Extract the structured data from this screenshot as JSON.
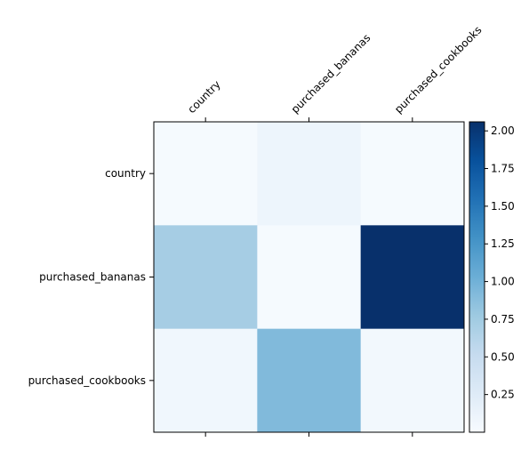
{
  "chart_data": {
    "type": "heatmap",
    "title": "",
    "xlabel": "",
    "ylabel": "",
    "x_categories": [
      "country",
      "purchased_bananas",
      "purchased_cookbooks"
    ],
    "y_categories": [
      "country",
      "purchased_bananas",
      "purchased_cookbooks"
    ],
    "values": [
      [
        0.02,
        0.1,
        0.02
      ],
      [
        0.72,
        0.02,
        2.06
      ],
      [
        0.07,
        0.92,
        0.05
      ]
    ],
    "colormap": "Blues",
    "color_range": [
      0.0,
      2.06
    ],
    "colorbar": {
      "ticks": [
        0.25,
        0.5,
        0.75,
        1.0,
        1.25,
        1.5,
        1.75,
        2.0
      ],
      "tick_labels": [
        "0.25",
        "0.50",
        "0.75",
        "1.00",
        "1.25",
        "1.50",
        "1.75",
        "2.00"
      ]
    },
    "x_tick_position": "top",
    "x_tick_rotation": -45
  }
}
